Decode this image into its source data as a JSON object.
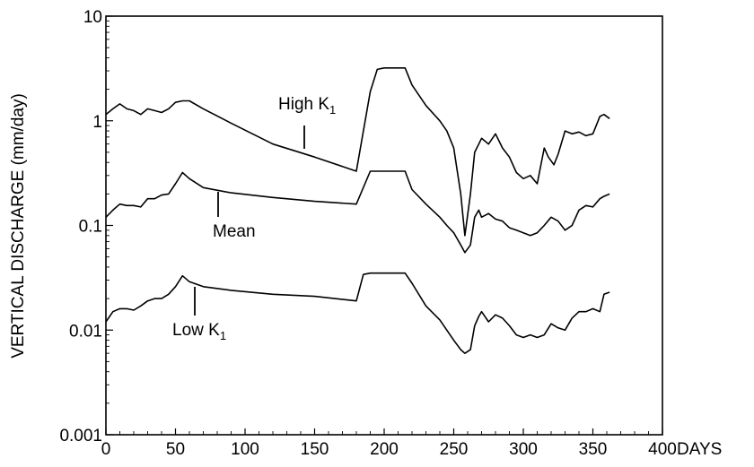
{
  "chart_data": {
    "type": "line",
    "title": "",
    "xlabel": "DAYS",
    "ylabel": "VERTICAL DISCHARGE (mm/day)",
    "xlim": [
      0,
      400
    ],
    "ylim": [
      0.001,
      10
    ],
    "yscale": "log",
    "grid": false,
    "x_ticks": [
      "0",
      "50",
      "100",
      "150",
      "200",
      "250",
      "300",
      "350",
      "400"
    ],
    "y_ticks": [
      "0.001",
      "0.01",
      "0.1",
      "1",
      "10"
    ],
    "annotations": [
      {
        "text": "High K",
        "sub": "1",
        "series": "High K1"
      },
      {
        "text": "Mean",
        "sub": "",
        "series": "Mean"
      },
      {
        "text": "Low K",
        "sub": "1",
        "series": "Low K1"
      }
    ],
    "series": [
      {
        "name": "High K1",
        "x": [
          0,
          5,
          10,
          15,
          20,
          25,
          30,
          35,
          40,
          45,
          50,
          55,
          60,
          70,
          90,
          120,
          150,
          180,
          190,
          195,
          200,
          205,
          210,
          215,
          220,
          230,
          240,
          245,
          250,
          255,
          258,
          262,
          265,
          268,
          270,
          275,
          280,
          285,
          290,
          295,
          300,
          305,
          310,
          315,
          318,
          322,
          325,
          330,
          335,
          340,
          345,
          350,
          355,
          358,
          362
        ],
        "y": [
          1.15,
          1.3,
          1.45,
          1.3,
          1.25,
          1.15,
          1.3,
          1.25,
          1.2,
          1.3,
          1.5,
          1.55,
          1.55,
          1.3,
          0.95,
          0.6,
          0.45,
          0.33,
          1.9,
          3.1,
          3.2,
          3.2,
          3.2,
          3.2,
          2.2,
          1.4,
          1.0,
          0.8,
          0.55,
          0.2,
          0.08,
          0.2,
          0.5,
          0.6,
          0.68,
          0.6,
          0.75,
          0.55,
          0.45,
          0.32,
          0.28,
          0.3,
          0.25,
          0.55,
          0.45,
          0.38,
          0.48,
          0.8,
          0.75,
          0.78,
          0.72,
          0.75,
          1.1,
          1.15,
          1.05
        ]
      },
      {
        "name": "Mean",
        "x": [
          0,
          5,
          10,
          15,
          20,
          25,
          30,
          35,
          40,
          45,
          50,
          55,
          60,
          70,
          90,
          120,
          150,
          180,
          190,
          195,
          200,
          205,
          210,
          215,
          220,
          230,
          240,
          245,
          250,
          255,
          258,
          262,
          265,
          268,
          270,
          275,
          280,
          285,
          290,
          295,
          300,
          305,
          310,
          315,
          320,
          325,
          330,
          335,
          340,
          345,
          350,
          355,
          358,
          362
        ],
        "y": [
          0.12,
          0.14,
          0.16,
          0.155,
          0.155,
          0.15,
          0.18,
          0.18,
          0.195,
          0.2,
          0.25,
          0.32,
          0.28,
          0.23,
          0.205,
          0.185,
          0.17,
          0.16,
          0.33,
          0.33,
          0.33,
          0.33,
          0.33,
          0.33,
          0.22,
          0.16,
          0.12,
          0.1,
          0.085,
          0.065,
          0.055,
          0.065,
          0.12,
          0.14,
          0.12,
          0.13,
          0.115,
          0.11,
          0.095,
          0.09,
          0.085,
          0.08,
          0.085,
          0.1,
          0.12,
          0.11,
          0.09,
          0.1,
          0.14,
          0.155,
          0.15,
          0.18,
          0.19,
          0.2
        ]
      },
      {
        "name": "Low K1",
        "x": [
          0,
          5,
          10,
          15,
          20,
          25,
          30,
          35,
          40,
          45,
          50,
          55,
          60,
          70,
          90,
          120,
          150,
          180,
          185,
          190,
          195,
          200,
          205,
          210,
          215,
          220,
          230,
          240,
          245,
          250,
          255,
          258,
          262,
          265,
          268,
          270,
          275,
          280,
          285,
          290,
          295,
          300,
          305,
          310,
          315,
          320,
          325,
          330,
          335,
          340,
          345,
          350,
          355,
          358,
          362
        ],
        "y": [
          0.012,
          0.015,
          0.016,
          0.016,
          0.0155,
          0.017,
          0.019,
          0.02,
          0.02,
          0.022,
          0.026,
          0.033,
          0.029,
          0.026,
          0.024,
          0.022,
          0.021,
          0.019,
          0.034,
          0.035,
          0.035,
          0.035,
          0.035,
          0.035,
          0.035,
          0.028,
          0.017,
          0.0125,
          0.01,
          0.008,
          0.0065,
          0.006,
          0.0065,
          0.011,
          0.0135,
          0.015,
          0.012,
          0.014,
          0.013,
          0.011,
          0.009,
          0.0085,
          0.009,
          0.0085,
          0.009,
          0.0115,
          0.0105,
          0.01,
          0.013,
          0.015,
          0.015,
          0.016,
          0.015,
          0.022,
          0.023
        ]
      }
    ]
  }
}
